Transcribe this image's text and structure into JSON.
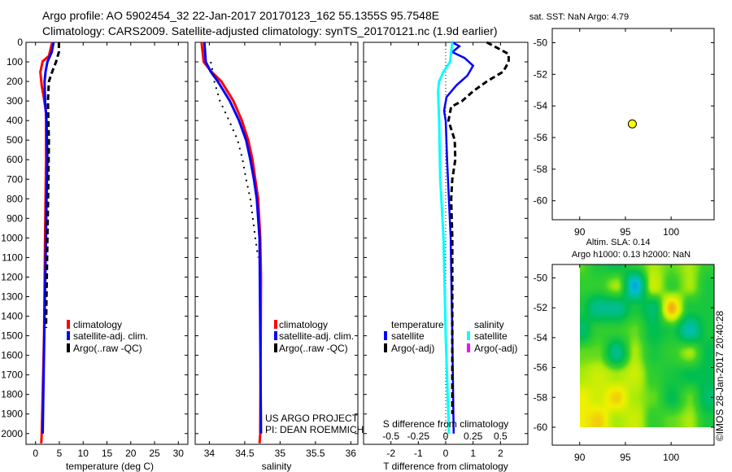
{
  "header": {
    "line1": "Argo profile: AO 5902454_32 22-Jan-2017 20170123_162 55.1355S 95.7548E",
    "line2": "Climatology: CARS2009. Satellite-adjusted climatology: synTS_20170121.nc (1.9d earlier)"
  },
  "credits": {
    "project": "US ARGO PROJECT",
    "pi": "PI: DEAN ROEMMICH",
    "stamp": "©IMOS 28-Jan-2017 20:40:28"
  },
  "colors": {
    "climatology": "#ff0000",
    "satellite": "#0000ff",
    "argo": "#000000",
    "salinity_sat": "#00ffff",
    "salinity_argo": "#ff00ff",
    "marker": "#ffff00"
  },
  "chart_data": [
    {
      "type": "line",
      "name": "temperature",
      "xlabel": "temperature (deg C)",
      "ylabel": "",
      "xlim": [
        -2,
        32
      ],
      "ylim": [
        0,
        2055
      ],
      "y_reversed": true,
      "xticks": [
        0,
        5,
        10,
        15,
        20,
        25,
        30
      ],
      "yticks": [
        0,
        100,
        200,
        300,
        400,
        500,
        600,
        700,
        800,
        900,
        1000,
        1100,
        1200,
        1300,
        1400,
        1500,
        1600,
        1700,
        1800,
        1900,
        2000
      ],
      "legend": [
        "climatology",
        "satellite-adj. clim.",
        "Argo(..raw -QC)"
      ],
      "series": [
        {
          "name": "climatology",
          "depth": [
            0,
            70,
            97,
            152,
            222,
            291,
            360,
            600,
            1000,
            1500,
            2000,
            2050
          ],
          "values": [
            3.5,
            2.8,
            1.5,
            1.0,
            1.3,
            1.8,
            2.2,
            2.2,
            2.0,
            1.8,
            1.3,
            1.2
          ]
        },
        {
          "name": "satellite-adj. clim.",
          "depth": [
            0,
            50,
            100,
            150,
            200,
            300,
            400,
            600,
            800,
            1000,
            1400,
            2000
          ],
          "values": [
            3.8,
            3.4,
            2.5,
            2.1,
            1.9,
            2.0,
            2.3,
            2.5,
            2.3,
            2.2,
            1.9,
            1.5
          ]
        },
        {
          "name": "Argo(..raw -QC)",
          "depth": [
            0,
            50,
            100,
            150,
            200,
            300,
            500,
            700,
            1000,
            1460
          ],
          "values": [
            4.9,
            4.9,
            4.3,
            3.5,
            2.8,
            2.6,
            2.8,
            2.7,
            2.5,
            2.2
          ]
        }
      ]
    },
    {
      "type": "line",
      "name": "salinity",
      "xlabel": "salinity",
      "xlim": [
        33.8,
        36.1
      ],
      "ylim": [
        0,
        2055
      ],
      "y_reversed": true,
      "xticks": [
        34,
        34.5,
        35,
        35.5,
        36
      ],
      "legend": [
        "climatology",
        "satellite-adj. clim.",
        "Argo(..raw -QC)"
      ],
      "series": [
        {
          "name": "climatology",
          "depth": [
            0,
            100,
            150,
            200,
            300,
            400,
            500,
            600,
            700,
            800,
            1000,
            1200,
            2000,
            2050
          ],
          "values": [
            33.89,
            33.92,
            34.03,
            34.17,
            34.34,
            34.46,
            34.55,
            34.61,
            34.65,
            34.69,
            34.72,
            34.73,
            34.72,
            34.71
          ]
        },
        {
          "name": "satellite-adj. clim.",
          "depth": [
            0,
            100,
            150,
            200,
            300,
            400,
            500,
            600,
            700,
            800,
            1000,
            2000
          ],
          "values": [
            33.93,
            33.95,
            34.02,
            34.12,
            34.29,
            34.42,
            34.52,
            34.58,
            34.63,
            34.67,
            34.71,
            34.73
          ]
        },
        {
          "name": "Argo(..raw -QC)",
          "depth": [
            100,
            150,
            200,
            300,
            400,
            500,
            600,
            700,
            800,
            1000,
            1100
          ],
          "values": [
            34.02,
            34.05,
            34.07,
            34.15,
            34.28,
            34.4,
            34.47,
            34.52,
            34.58,
            34.65,
            34.69
          ]
        }
      ]
    },
    {
      "type": "line",
      "name": "difference",
      "xlabel": "T difference from climatology",
      "s_axis_label": "S difference from climatology",
      "xlim": [
        -3,
        3
      ],
      "s_xlim": [
        -0.75,
        0.75
      ],
      "ylim": [
        0,
        2055
      ],
      "y_reversed": true,
      "xticks": [
        -2,
        -1,
        0,
        1,
        2
      ],
      "s_xticks": [
        "-0.5",
        "-0.25",
        "0",
        "0.25",
        "0.5"
      ],
      "legend_titles": [
        "temperature",
        "salinity"
      ],
      "legend_temperature": [
        "satellite",
        "Argo(-adj)"
      ],
      "legend_salinity": [
        "satellite",
        "Argo(-adj)"
      ],
      "series": [
        {
          "name": "T satellite",
          "axis": "T",
          "depth": [
            0,
            20,
            50,
            80,
            120,
            170,
            220,
            280,
            350,
            400,
            600,
            1000,
            1500,
            2000
          ],
          "values": [
            0.24,
            0.5,
            0.24,
            0.69,
            1.0,
            0.79,
            0.39,
            0.03,
            -0.06,
            0,
            0.05,
            0.18,
            0.24,
            0.29
          ]
        },
        {
          "name": "T Argo(-adj)",
          "axis": "T",
          "depth": [
            0,
            30,
            60,
            100,
            150,
            200,
            250,
            300,
            330,
            400,
            500,
            600,
            700,
            800,
            1000,
            1500,
            1900
          ],
          "values": [
            1.5,
            1.9,
            2.3,
            2.3,
            2.1,
            1.5,
            1.0,
            0.6,
            0.2,
            0.1,
            0.33,
            0.35,
            0.24,
            0.2,
            0.24,
            0.24,
            0.24
          ]
        },
        {
          "name": "S satellite",
          "axis": "S",
          "depth": [
            0,
            50,
            100,
            150,
            200,
            250,
            400,
            700,
            1000,
            1500,
            2000
          ],
          "values": [
            0.06,
            0.05,
            0.04,
            -0.02,
            -0.06,
            -0.07,
            -0.06,
            -0.05,
            -0.02,
            0.0,
            0.03
          ]
        }
      ]
    },
    {
      "type": "scatter",
      "name": "sst map",
      "title": "sat. SST: NaN Argo: 4.79",
      "xlim": [
        87,
        104.7
      ],
      "ylim": [
        -61.2,
        -49.1
      ],
      "xticks": [
        90,
        95,
        100
      ],
      "yticks": [
        -50,
        -52,
        -54,
        -56,
        -58,
        -60
      ],
      "points": [
        {
          "lon": 95.7548,
          "lat": -55.1355
        }
      ]
    },
    {
      "type": "heatmap",
      "name": "sla map",
      "title1": "Altim. SLA: 0.14",
      "title2": "Argo h1000: 0.13 h2000: NaN",
      "xlim": [
        87,
        104.7
      ],
      "ylim": [
        -61.2,
        -49.1
      ],
      "xticks": [
        90,
        95,
        100
      ],
      "yticks": [
        -50,
        -52,
        -54,
        -56,
        -58,
        -60
      ],
      "field_extent": {
        "lon": [
          90,
          104.7
        ],
        "lat": [
          -60,
          -49.1
        ]
      },
      "grid_lon": [
        90,
        92,
        94,
        96,
        98,
        100,
        102,
        104
      ],
      "grid_lat": [
        -49,
        -50.5,
        -52,
        -53.5,
        -55,
        -56.5,
        -58,
        -59.5
      ],
      "values": [
        [
          0.2,
          0,
          -0.1,
          0.1,
          0.3,
          0.2,
          0.3,
          0.1
        ],
        [
          0.1,
          0.1,
          0.3,
          -0.6,
          0.4,
          0.1,
          0.3,
          0
        ],
        [
          0,
          -0.3,
          -0.3,
          0,
          -0.2,
          0.7,
          0,
          0
        ],
        [
          -0.2,
          0.1,
          0.1,
          0.2,
          -0.1,
          0,
          -0.4,
          0
        ],
        [
          0.2,
          0.2,
          -0.3,
          0.3,
          0,
          0.1,
          0.3,
          -0.1
        ],
        [
          0.3,
          0.4,
          0.3,
          0.4,
          0.1,
          0,
          -0.1,
          -0.1
        ],
        [
          0.5,
          0.4,
          0.6,
          0.3,
          0.2,
          -0.1,
          0.2,
          -0.2
        ],
        [
          0.5,
          0.6,
          0.3,
          0.4,
          0.1,
          0.2,
          0.3,
          0
        ]
      ]
    }
  ]
}
